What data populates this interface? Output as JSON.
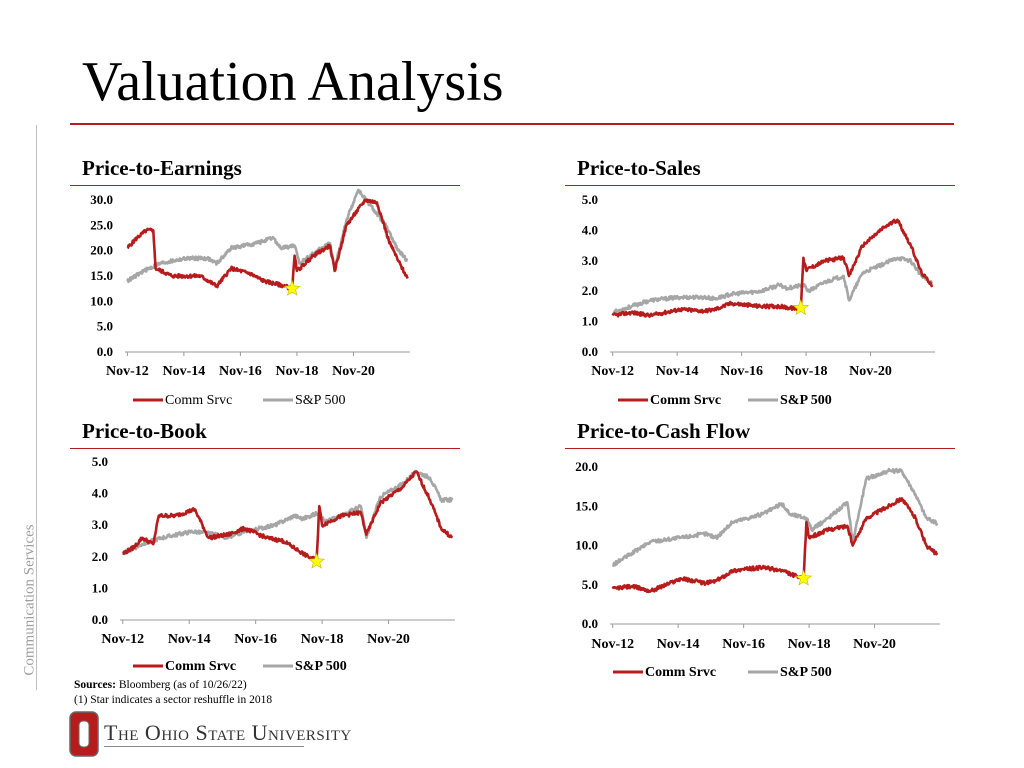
{
  "page": {
    "title": "Valuation Analysis",
    "side_label": "Communication Services",
    "sources_label": "Sources:",
    "sources_text": " Bloomberg (as of 10/26/22)",
    "footnote": "(1)   Star indicates a sector reshuffle in 2018",
    "university": "The Ohio State University",
    "logo_letter": "O"
  },
  "colors": {
    "comm": "#b71c1c",
    "sp": "#a6a6a6",
    "star": "#ffff00",
    "accent": "#b71c1c"
  },
  "chart_data": [
    {
      "type": "line",
      "title": "Price-to-Earnings",
      "x_ticks": [
        "Nov-12",
        "Nov-14",
        "Nov-16",
        "Nov-18",
        "Nov-20"
      ],
      "y_ticks": [
        "0.0",
        "5.0",
        "10.0",
        "15.0",
        "20.0",
        "25.0",
        "30.0"
      ],
      "ylim": [
        0,
        30
      ],
      "legend_placement": "bottom",
      "legend_bold": false,
      "grid": false,
      "series": [
        {
          "name": "Comm Srvc",
          "points": [
            [
              "2012-11",
              20.5
            ],
            [
              "2013-03",
              22.5
            ],
            [
              "2013-07",
              24.0
            ],
            [
              "2013-10",
              24.0
            ],
            [
              "2013-11",
              16.5
            ],
            [
              "2014-06",
              15.0
            ],
            [
              "2015-06",
              15.0
            ],
            [
              "2016-01",
              13.0
            ],
            [
              "2016-07",
              16.5
            ],
            [
              "2017-03",
              15.5
            ],
            [
              "2017-09",
              14.0
            ],
            [
              "2018-06",
              13.0
            ],
            [
              "2018-09",
              12.5
            ],
            [
              "2018-10",
              19.0
            ],
            [
              "2018-11",
              16.0
            ],
            [
              "2019-06",
              19.0
            ],
            [
              "2020-01",
              21.0
            ],
            [
              "2020-03",
              16.0
            ],
            [
              "2020-08",
              25.0
            ],
            [
              "2021-04",
              30.0
            ],
            [
              "2021-09",
              29.5
            ],
            [
              "2022-02",
              22.0
            ],
            [
              "2022-06",
              18.0
            ],
            [
              "2022-10",
              14.5
            ]
          ]
        },
        {
          "name": "S&P 500",
          "points": [
            [
              "2012-11",
              14.0
            ],
            [
              "2013-06",
              16.0
            ],
            [
              "2014-01",
              17.5
            ],
            [
              "2014-12",
              18.5
            ],
            [
              "2015-09",
              18.5
            ],
            [
              "2016-01",
              17.5
            ],
            [
              "2016-07",
              20.5
            ],
            [
              "2017-06",
              21.5
            ],
            [
              "2018-01",
              22.5
            ],
            [
              "2018-04",
              20.5
            ],
            [
              "2018-10",
              21.0
            ],
            [
              "2018-12",
              17.5
            ],
            [
              "2019-06",
              19.5
            ],
            [
              "2020-01",
              21.5
            ],
            [
              "2020-03",
              16.5
            ],
            [
              "2020-08",
              26.0
            ],
            [
              "2021-01",
              32.0
            ],
            [
              "2021-06",
              29.0
            ],
            [
              "2021-12",
              25.5
            ],
            [
              "2022-06",
              20.0
            ],
            [
              "2022-10",
              18.0
            ]
          ]
        }
      ],
      "annotation": {
        "label": "star",
        "x": "2018-09",
        "y": 12.5
      }
    },
    {
      "type": "line",
      "title": "Price-to-Sales",
      "x_ticks": [
        "Nov-12",
        "Nov-14",
        "Nov-16",
        "Nov-18",
        "Nov-20"
      ],
      "y_ticks": [
        "0.0",
        "1.0",
        "2.0",
        "3.0",
        "4.0",
        "5.0"
      ],
      "ylim": [
        0,
        5
      ],
      "legend_placement": "bottom",
      "legend_bold": true,
      "grid": false,
      "series": [
        {
          "name": "Comm Srvc",
          "points": [
            [
              "2012-11",
              1.2
            ],
            [
              "2013-06",
              1.3
            ],
            [
              "2014-01",
              1.2
            ],
            [
              "2014-12",
              1.4
            ],
            [
              "2015-09",
              1.35
            ],
            [
              "2016-01",
              1.4
            ],
            [
              "2016-07",
              1.6
            ],
            [
              "2017-06",
              1.5
            ],
            [
              "2018-01",
              1.5
            ],
            [
              "2018-09",
              1.4
            ],
            [
              "2018-10",
              3.1
            ],
            [
              "2018-11",
              2.7
            ],
            [
              "2019-06",
              3.0
            ],
            [
              "2020-01",
              3.1
            ],
            [
              "2020-03",
              2.5
            ],
            [
              "2020-08",
              3.5
            ],
            [
              "2021-04",
              4.1
            ],
            [
              "2021-09",
              4.35
            ],
            [
              "2022-02",
              3.5
            ],
            [
              "2022-06",
              2.6
            ],
            [
              "2022-10",
              2.2
            ]
          ]
        },
        {
          "name": "S&P 500",
          "points": [
            [
              "2012-11",
              1.3
            ],
            [
              "2013-06",
              1.5
            ],
            [
              "2014-01",
              1.7
            ],
            [
              "2014-12",
              1.8
            ],
            [
              "2015-09",
              1.8
            ],
            [
              "2016-01",
              1.75
            ],
            [
              "2016-07",
              1.9
            ],
            [
              "2017-06",
              2.0
            ],
            [
              "2018-01",
              2.2
            ],
            [
              "2018-04",
              2.1
            ],
            [
              "2018-10",
              2.2
            ],
            [
              "2018-12",
              2.0
            ],
            [
              "2019-06",
              2.3
            ],
            [
              "2020-01",
              2.5
            ],
            [
              "2020-03",
              1.7
            ],
            [
              "2020-08",
              2.6
            ],
            [
              "2021-04",
              2.9
            ],
            [
              "2021-09",
              3.1
            ],
            [
              "2022-02",
              3.0
            ],
            [
              "2022-06",
              2.5
            ],
            [
              "2022-10",
              2.25
            ]
          ]
        }
      ],
      "annotation": {
        "label": "star",
        "x": "2018-09",
        "y": 1.45
      }
    },
    {
      "type": "line",
      "title": "Price-to-Book",
      "x_ticks": [
        "Nov-12",
        "Nov-14",
        "Nov-16",
        "Nov-18",
        "Nov-20"
      ],
      "y_ticks": [
        "0.0",
        "1.0",
        "2.0",
        "3.0",
        "4.0",
        "5.0"
      ],
      "ylim": [
        0,
        5
      ],
      "legend_placement": "bottom",
      "legend_bold": true,
      "grid": false,
      "series": [
        {
          "name": "Comm Srvc",
          "points": [
            [
              "2012-11",
              2.1
            ],
            [
              "2013-03",
              2.3
            ],
            [
              "2013-06",
              2.6
            ],
            [
              "2013-10",
              2.4
            ],
            [
              "2013-12",
              3.3
            ],
            [
              "2014-06",
              3.3
            ],
            [
              "2015-01",
              3.5
            ],
            [
              "2015-06",
              2.6
            ],
            [
              "2016-01",
              2.7
            ],
            [
              "2016-07",
              2.9
            ],
            [
              "2017-03",
              2.6
            ],
            [
              "2017-09",
              2.5
            ],
            [
              "2018-06",
              2.0
            ],
            [
              "2018-09",
              1.9
            ],
            [
              "2018-10",
              3.6
            ],
            [
              "2018-11",
              3.0
            ],
            [
              "2019-06",
              3.3
            ],
            [
              "2020-01",
              3.4
            ],
            [
              "2020-03",
              2.7
            ],
            [
              "2020-08",
              3.7
            ],
            [
              "2021-04",
              4.2
            ],
            [
              "2021-09",
              4.7
            ],
            [
              "2022-02",
              3.8
            ],
            [
              "2022-06",
              2.9
            ],
            [
              "2022-10",
              2.6
            ]
          ]
        },
        {
          "name": "S&P 500",
          "points": [
            [
              "2012-11",
              2.1
            ],
            [
              "2013-06",
              2.4
            ],
            [
              "2014-01",
              2.6
            ],
            [
              "2014-12",
              2.8
            ],
            [
              "2015-09",
              2.7
            ],
            [
              "2016-01",
              2.6
            ],
            [
              "2016-07",
              2.8
            ],
            [
              "2017-06",
              3.0
            ],
            [
              "2018-01",
              3.3
            ],
            [
              "2018-04",
              3.2
            ],
            [
              "2018-10",
              3.4
            ],
            [
              "2018-12",
              3.1
            ],
            [
              "2019-06",
              3.3
            ],
            [
              "2020-01",
              3.6
            ],
            [
              "2020-03",
              2.6
            ],
            [
              "2020-08",
              3.9
            ],
            [
              "2021-04",
              4.3
            ],
            [
              "2021-09",
              4.7
            ],
            [
              "2022-02",
              4.5
            ],
            [
              "2022-06",
              3.8
            ],
            [
              "2022-10",
              3.8
            ]
          ]
        }
      ],
      "annotation": {
        "label": "star",
        "x": "2018-09",
        "y": 1.85
      }
    },
    {
      "type": "line",
      "title": "Price-to-Cash Flow",
      "x_ticks": [
        "Nov-12",
        "Nov-14",
        "Nov-16",
        "Nov-18",
        "Nov-20"
      ],
      "y_ticks": [
        "0.0",
        "5.0",
        "10.0",
        "15.0",
        "20.0"
      ],
      "ylim": [
        0,
        20
      ],
      "legend_placement": "bottom",
      "legend_bold": true,
      "grid": false,
      "series": [
        {
          "name": "Comm Srvc",
          "points": [
            [
              "2012-11",
              4.5
            ],
            [
              "2013-06",
              4.8
            ],
            [
              "2014-01",
              4.2
            ],
            [
              "2014-12",
              5.8
            ],
            [
              "2015-09",
              5.2
            ],
            [
              "2016-01",
              5.5
            ],
            [
              "2016-07",
              6.8
            ],
            [
              "2017-06",
              7.2
            ],
            [
              "2018-01",
              6.8
            ],
            [
              "2018-09",
              5.7
            ],
            [
              "2018-10",
              13.0
            ],
            [
              "2018-11",
              11.0
            ],
            [
              "2019-06",
              12.0
            ],
            [
              "2020-01",
              12.5
            ],
            [
              "2020-03",
              10.0
            ],
            [
              "2020-08",
              13.5
            ],
            [
              "2021-04",
              15.0
            ],
            [
              "2021-09",
              16.0
            ],
            [
              "2022-02",
              13.5
            ],
            [
              "2022-06",
              10.0
            ],
            [
              "2022-10",
              8.8
            ]
          ]
        },
        {
          "name": "S&P 500",
          "points": [
            [
              "2012-11",
              7.5
            ],
            [
              "2013-06",
              9.0
            ],
            [
              "2014-01",
              10.5
            ],
            [
              "2014-12",
              11.0
            ],
            [
              "2015-09",
              11.5
            ],
            [
              "2016-01",
              11.0
            ],
            [
              "2016-07",
              13.0
            ],
            [
              "2017-06",
              14.0
            ],
            [
              "2018-01",
              15.3
            ],
            [
              "2018-04",
              14.0
            ],
            [
              "2018-10",
              13.5
            ],
            [
              "2018-12",
              12.0
            ],
            [
              "2019-06",
              13.5
            ],
            [
              "2020-01",
              15.5
            ],
            [
              "2020-03",
              10.5
            ],
            [
              "2020-08",
              18.5
            ],
            [
              "2021-04",
              19.5
            ],
            [
              "2021-09",
              19.5
            ],
            [
              "2022-02",
              16.5
            ],
            [
              "2022-06",
              13.5
            ],
            [
              "2022-10",
              12.8
            ]
          ]
        }
      ],
      "annotation": {
        "label": "star",
        "x": "2018-09",
        "y": 5.8
      }
    }
  ]
}
